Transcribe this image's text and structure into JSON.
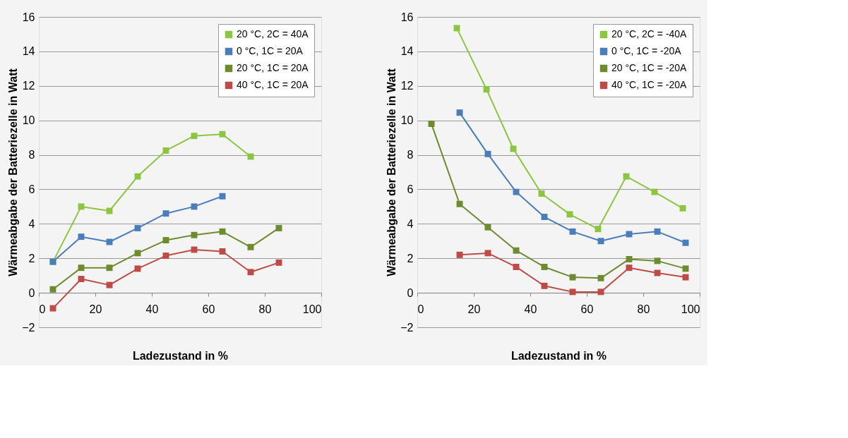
{
  "chart_data": [
    {
      "type": "line",
      "xlabel": "Ladezustand  in %",
      "ylabel": "Wärmeabgabe der Batteriezelle  in Watt",
      "xlim": [
        0,
        100
      ],
      "xticks": [
        0,
        20,
        40,
        60,
        80,
        100
      ],
      "ylim": [
        -2,
        16
      ],
      "yticks": [
        -2,
        0,
        2,
        4,
        6,
        8,
        10,
        12,
        14,
        16
      ],
      "grid": "y",
      "legend": "top right",
      "marker": "square",
      "line_style": "solid",
      "series": [
        {
          "name": "20 °C, 2C = 40A",
          "color": "#8cc63f",
          "x": [
            5,
            15,
            25,
            35,
            45,
            55,
            65,
            75
          ],
          "values": [
            1.8,
            5.0,
            4.75,
            6.75,
            8.25,
            9.1,
            9.2,
            7.9
          ]
        },
        {
          "name": "  0 °C, 1C = 20A",
          "color": "#4a7ebb",
          "x": [
            5,
            15,
            25,
            35,
            45,
            55,
            65
          ],
          "values": [
            1.8,
            3.25,
            2.95,
            3.75,
            4.6,
            5.0,
            5.6
          ]
        },
        {
          "name": "20 °C, 1C = 20A",
          "color": "#6e8b2e",
          "x": [
            5,
            15,
            25,
            35,
            45,
            55,
            65,
            75,
            85
          ],
          "values": [
            0.2,
            1.45,
            1.45,
            2.3,
            3.05,
            3.35,
            3.55,
            2.65,
            3.75
          ]
        },
        {
          "name": "40 °C, 1C = 20A",
          "color": "#be4b48",
          "x": [
            5,
            15,
            25,
            35,
            45,
            55,
            65,
            75,
            85
          ],
          "values": [
            -0.9,
            0.8,
            0.45,
            1.4,
            2.15,
            2.5,
            2.4,
            1.2,
            1.75
          ]
        }
      ]
    },
    {
      "type": "line",
      "xlabel": "Ladezustand  in %",
      "ylabel": "Wärmeabgabe der Batteriezelle  in Watt",
      "xlim": [
        0,
        100
      ],
      "xticks": [
        0,
        20,
        40,
        60,
        80,
        100
      ],
      "ylim": [
        -2,
        16
      ],
      "yticks": [
        -2,
        0,
        2,
        4,
        6,
        8,
        10,
        12,
        14,
        16
      ],
      "grid": "y",
      "legend": "top right",
      "marker": "square",
      "line_style": "solid",
      "series": [
        {
          "name": "20 °C, 2C = -40A",
          "color": "#8cc63f",
          "x": [
            14,
            24.5,
            34,
            44,
            54,
            64,
            74,
            84,
            94
          ],
          "values": [
            15.35,
            11.8,
            8.35,
            5.75,
            4.55,
            3.7,
            6.75,
            5.85,
            4.9
          ]
        },
        {
          "name": "  0 °C, 1C = -20A",
          "color": "#4a7ebb",
          "x": [
            15,
            25,
            35,
            45,
            55,
            65,
            75,
            85,
            95
          ],
          "values": [
            10.45,
            8.05,
            5.85,
            4.4,
            3.55,
            3.0,
            3.4,
            3.55,
            2.9
          ]
        },
        {
          "name": "20 °C, 1C = -20A",
          "color": "#6e8b2e",
          "x": [
            5,
            15,
            25,
            35,
            45,
            55,
            65,
            75,
            85,
            95
          ],
          "values": [
            9.8,
            5.15,
            3.8,
            2.45,
            1.5,
            0.9,
            0.85,
            1.95,
            1.85,
            1.4
          ]
        },
        {
          "name": "40 °C, 1C = -20A",
          "color": "#be4b48",
          "x": [
            15,
            25,
            35,
            45,
            55,
            65,
            75,
            85,
            95
          ],
          "values": [
            2.2,
            2.3,
            1.5,
            0.4,
            0.05,
            0.05,
            1.45,
            1.15,
            0.9
          ]
        }
      ]
    }
  ]
}
